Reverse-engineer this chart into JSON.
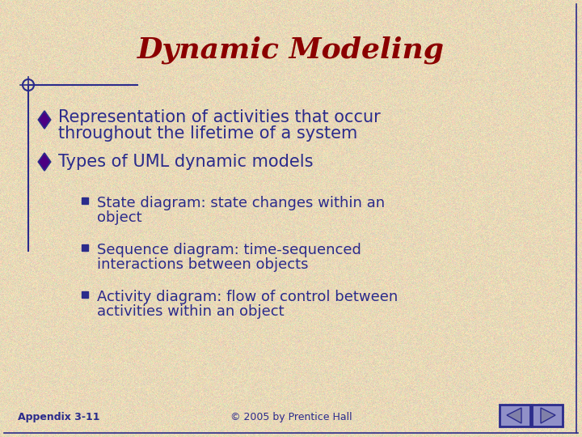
{
  "title": "Dynamic Modeling",
  "title_color": "#8B0000",
  "title_fontsize": 26,
  "bg_color": "#E8D9B8",
  "text_color": "#2B2B8B",
  "bullet1_line1": "Representation of activities that occur",
  "bullet1_line2": "throughout the lifetime of a system",
  "bullet2": "Types of UML dynamic models",
  "sub1_line1": "State diagram: state changes within an",
  "sub1_line2": "object",
  "sub2_line1": "Sequence diagram: time-sequenced",
  "sub2_line2": "interactions between objects",
  "sub3_line1": "Activity diagram: flow of control between",
  "sub3_line2": "activities within an object",
  "footer_left": "Appendix 3-11",
  "footer_center": "© 2005 by Prentice Hall",
  "diamond_color": "#2B2B8B",
  "diamond_fill": "#4B0082",
  "square_bullet_color": "#2B2B8B",
  "nav_bg": "#9090C8",
  "nav_border": "#2B2B8B",
  "border_color": "#2B2B8B"
}
